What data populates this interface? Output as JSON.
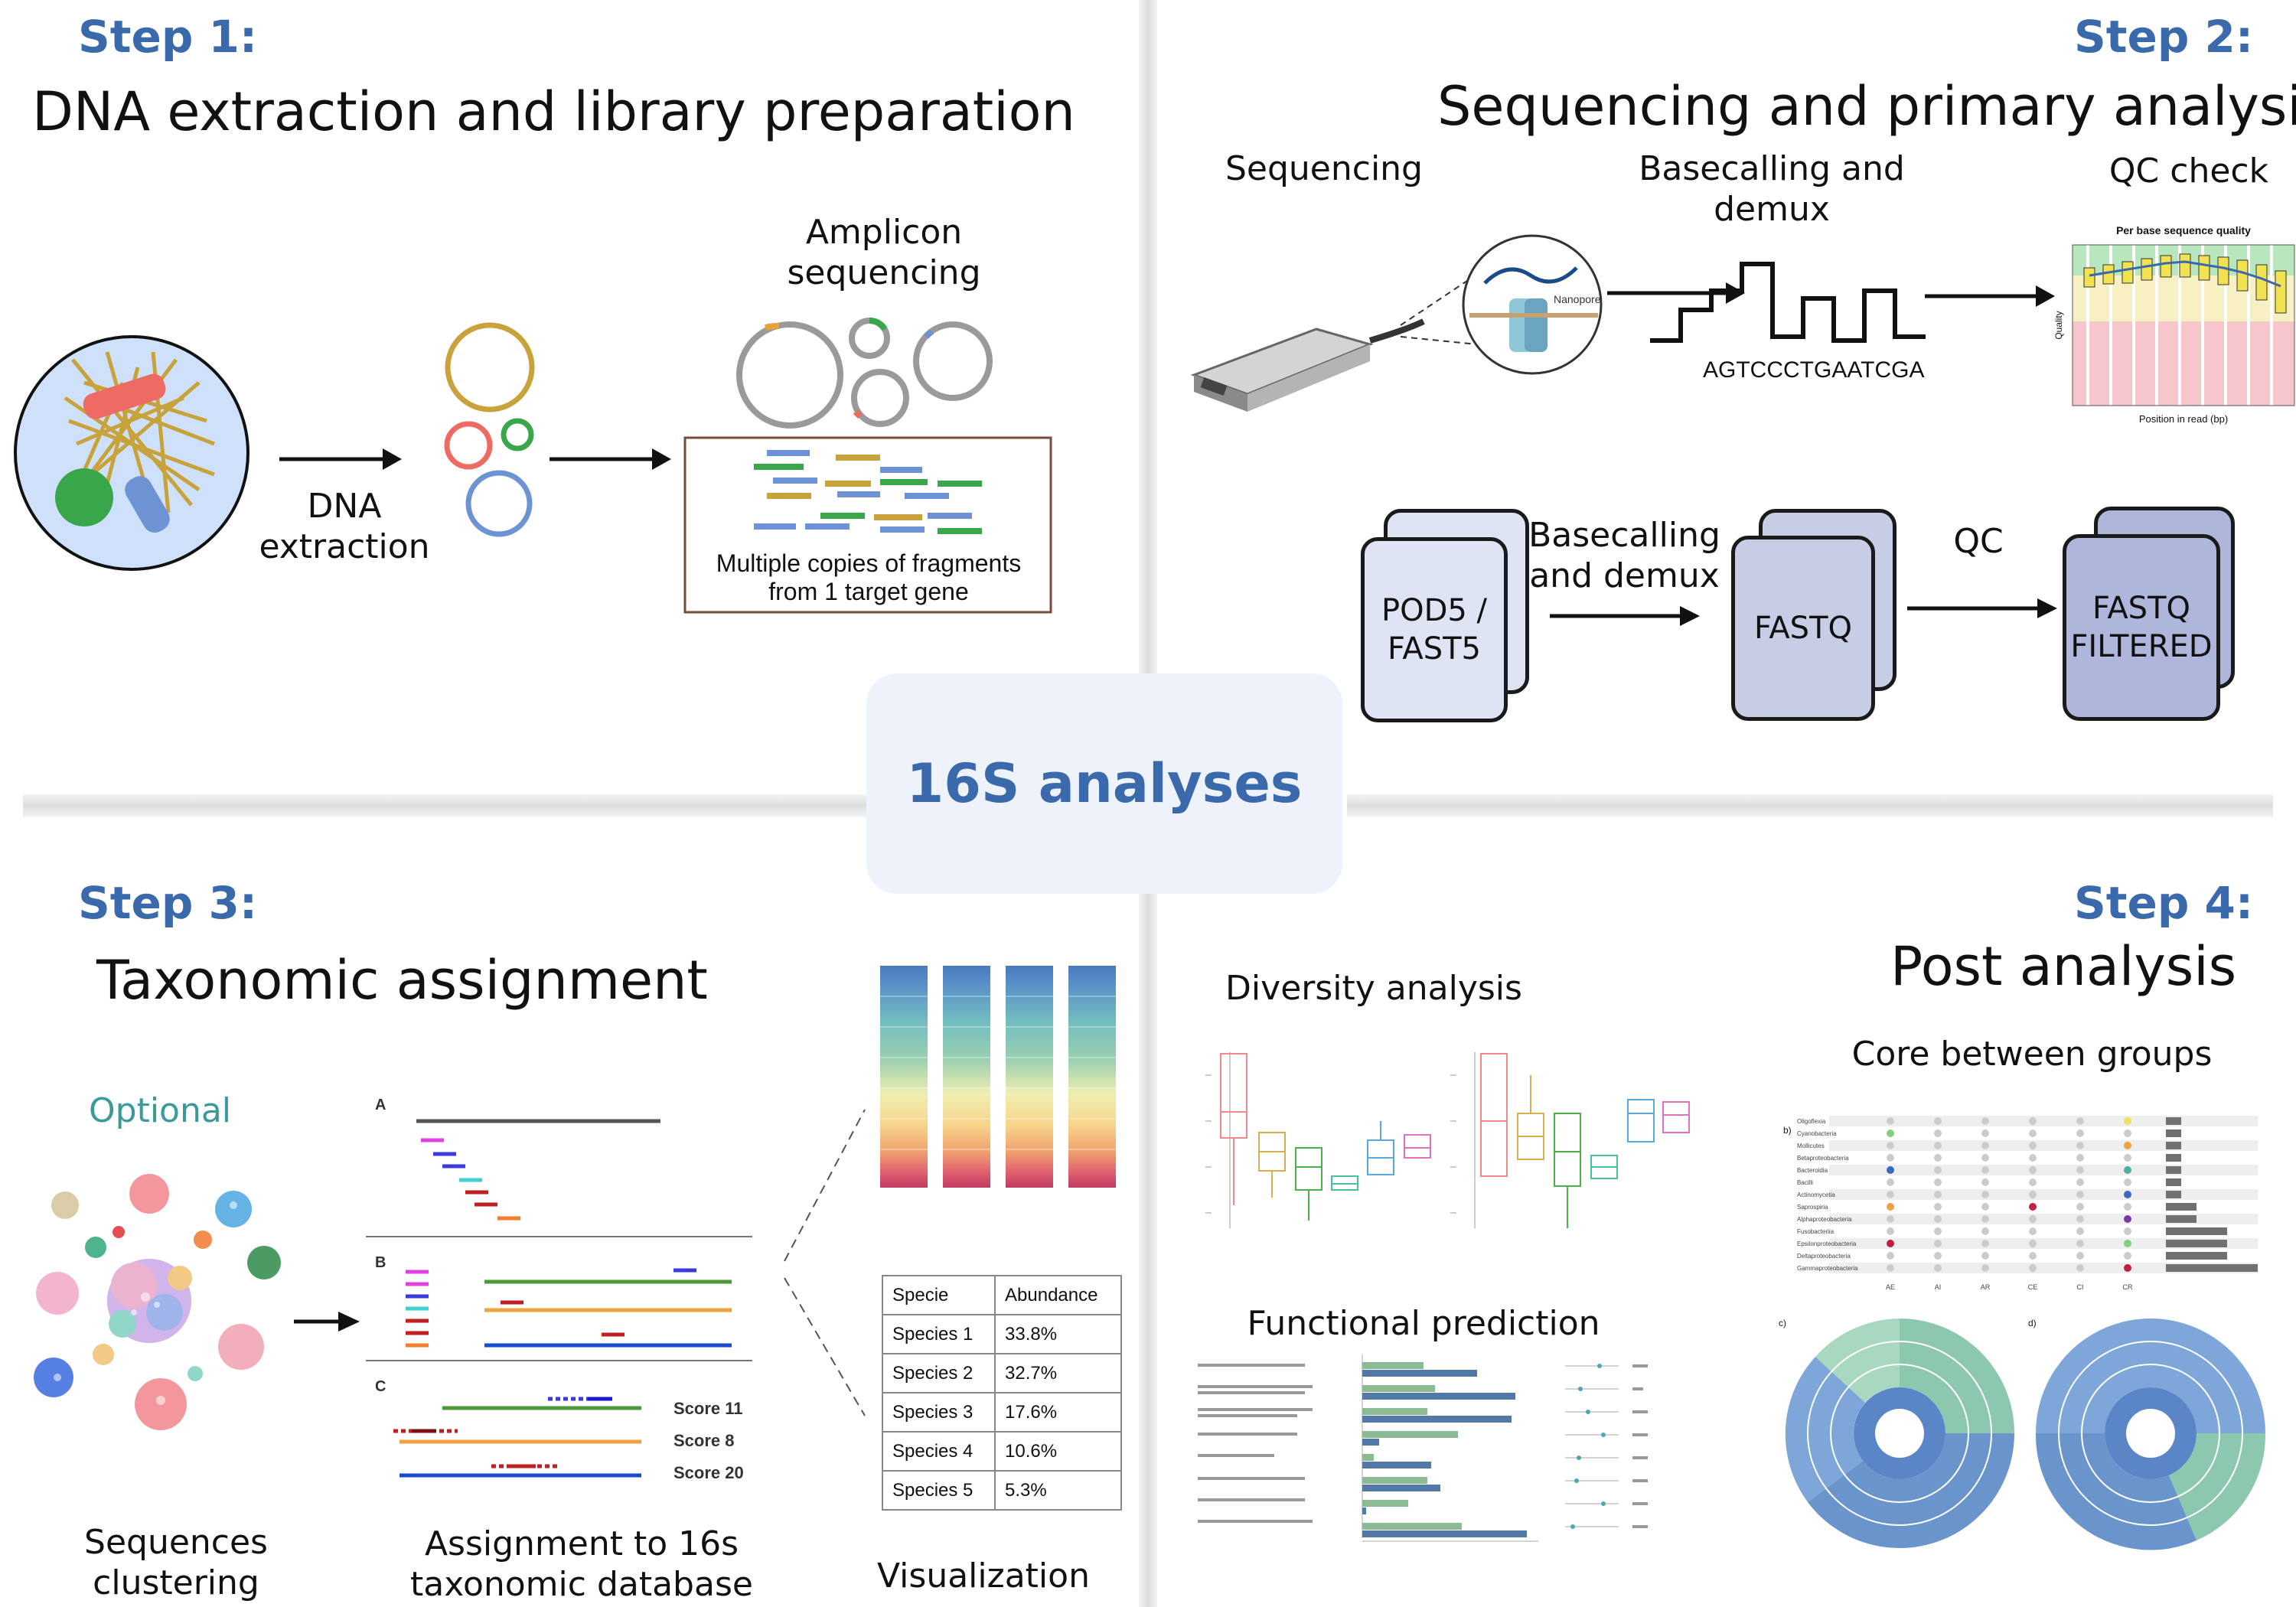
{
  "center": {
    "label": "16S analyses"
  },
  "step1": {
    "step": "Step 1:",
    "title": "DNA extraction and library preparation",
    "dna_extraction": "DNA\nextraction",
    "amplicon": "Amplicon\nsequencing",
    "fragments_note": "Multiple copies of fragments\nfrom 1 target gene"
  },
  "step2": {
    "step": "Step 2:",
    "title": "Sequencing and primary analysis",
    "sequencing": "Sequencing",
    "basecalling_demux": "Basecalling and\ndemux",
    "qc_check": "QC check",
    "nanopore": "Nanopore",
    "sequence": "AGTCCCTGAATCGA",
    "qc_plot_title": "Per base sequence quality",
    "qc_plot_xlabel": "Position in read (bp)",
    "qc_plot_ylabel": "Quality",
    "file1": "POD5 /\nFAST5",
    "arrow1": "Basecalling\nand demux",
    "file2": "FASTQ",
    "arrow2": "QC",
    "file3": "FASTQ\nFILTERED"
  },
  "step3": {
    "step": "Step 3:",
    "title": "Taxonomic assignment",
    "optional": "Optional",
    "clustering": "Sequences\nclustering",
    "assignment": "Assignment to 16s\ntaxonomic database",
    "visualization": "Visualization",
    "panel_a": "A",
    "panel_b": "B",
    "panel_c": "C",
    "scores": [
      "Score 11",
      "Score 8",
      "Score 20"
    ],
    "table_headers": [
      "Specie",
      "Abundance"
    ],
    "table_rows": [
      [
        "Species 1",
        "33.8%"
      ],
      [
        "Species 2",
        "32.7%"
      ],
      [
        "Species 3",
        "17.6%"
      ],
      [
        "Species 4",
        "10.6%"
      ],
      [
        "Species 5",
        "5.3%"
      ]
    ]
  },
  "step4": {
    "step": "Step 4:",
    "title": "Post analysis",
    "diversity": "Diversity analysis",
    "core": "Core between groups",
    "functional": "Functional prediction",
    "core_label_b": "b)",
    "sun_label_c": "c)",
    "sun_label_d": "d)",
    "core_taxa": [
      "Oligoflexia",
      "Cyanobacteria",
      "Mollicutes",
      "Betaproteobacteria",
      "Bacteroidia",
      "Bacilli",
      "Actinomycetia",
      "Saprospiria",
      "Alphaproteobacteria",
      "Fusobacteriia",
      "Epsilonproteobacteria",
      "Deltaproteobacteria",
      "Gammaproteobacteria"
    ],
    "core_groups": [
      "AE",
      "AI",
      "AR",
      "CE",
      "CI",
      "CR"
    ],
    "core_bar_values": [
      1,
      1,
      1,
      1,
      1,
      1,
      1,
      2,
      2,
      4,
      4,
      4,
      6
    ]
  },
  "colors": {
    "accent": "#3a6aac",
    "optional": "#3a9a9a",
    "center_bg": "#eef2fb",
    "file_fill": "#dfe4f5",
    "file_fill2": "#c8cde6",
    "file_fill3": "#aeb6dc"
  }
}
